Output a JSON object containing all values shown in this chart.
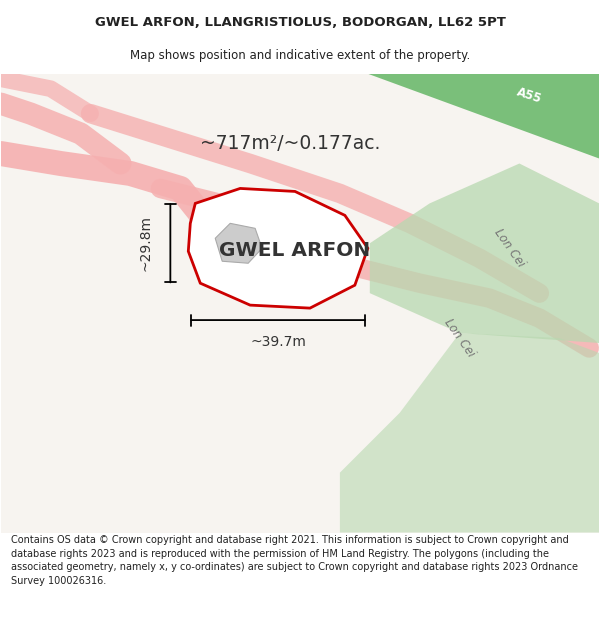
{
  "title_line1": "GWEL ARFON, LLANGRISTIOLUS, BODORGAN, LL62 5PT",
  "title_line2": "Map shows position and indicative extent of the property.",
  "property_label": "GWEL ARFON",
  "area_label": "~717m²/~0.177ac.",
  "width_label": "~39.7m",
  "height_label": "~29.8m",
  "road_label1": "Lon Cei",
  "road_label2": "Lon Cei",
  "road_label_A55": "A55",
  "footer_text": "Contains OS data © Crown copyright and database right 2021. This information is subject to Crown copyright and database rights 2023 and is reproduced with the permission of HM Land Registry. The polygons (including the associated geometry, namely x, y co-ordinates) are subject to Crown copyright and database rights 2023 Ordnance Survey 100026316.",
  "bg_color": "#ffffff",
  "map_bg": "#f7f4f0",
  "property_fill": "#ffffff",
  "property_edge": "#cc0000",
  "road_pink": "#f5b0b0",
  "road_pink_edge": "#e89090",
  "green_fill": "#b8d8b0",
  "A55_fill": "#7abf7a",
  "A55_text": "#ffffff",
  "title_color": "#222222",
  "label_color": "#333333",
  "footer_color": "#222222",
  "building_fill": "#cccccc",
  "building_edge": "#aaaaaa",
  "dim_color": "#000000",
  "road_text_color": "#777777"
}
